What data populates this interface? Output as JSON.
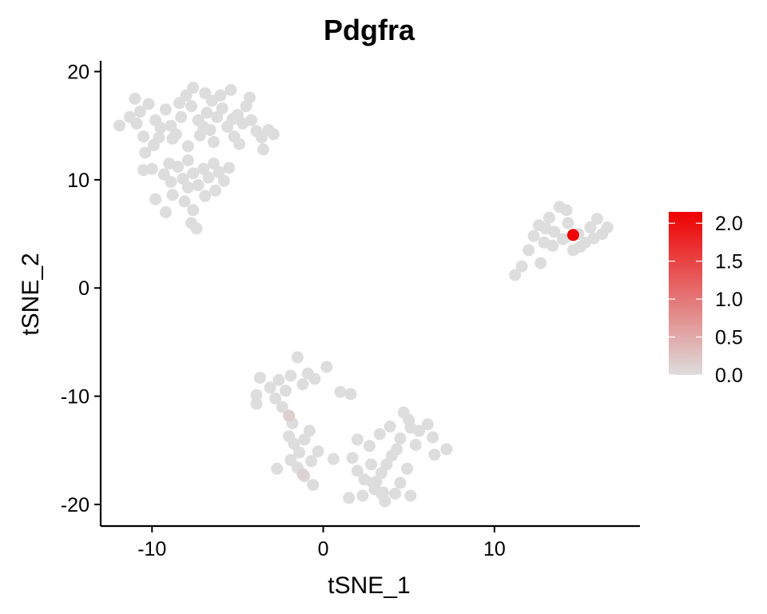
{
  "chart_data": {
    "type": "scatter",
    "title": "Pdgfra",
    "xlabel": "tSNE_1",
    "ylabel": "tSNE_2",
    "xlim": [
      -13.0,
      18.5
    ],
    "ylim": [
      -22,
      21
    ],
    "xticks": [
      -10,
      0,
      10
    ],
    "yticks": [
      -20,
      -10,
      0,
      10,
      20
    ],
    "xtick_labels": [
      "-10",
      "0",
      "10"
    ],
    "ytick_labels": [
      "-20",
      "-10",
      "0",
      "10",
      "20"
    ],
    "grid": false,
    "legend_position": "right",
    "color_scale": {
      "low": "#dddddd",
      "high": "#ee0000",
      "min": 0,
      "max": 2.15,
      "ticks": [
        0.0,
        0.5,
        1.0,
        1.5,
        2.0
      ],
      "tick_labels": [
        "0.0",
        "0.5",
        "1.0",
        "1.5",
        "2.0"
      ]
    },
    "points": [
      {
        "x": -11.9,
        "y": 15.0,
        "value": 0
      },
      {
        "x": -11.3,
        "y": 15.8,
        "value": 0
      },
      {
        "x": -11.0,
        "y": 17.5,
        "value": 0
      },
      {
        "x": -10.7,
        "y": 16.3,
        "value": 0
      },
      {
        "x": -10.5,
        "y": 14.0,
        "value": 0
      },
      {
        "x": -10.9,
        "y": 15.2,
        "value": 0
      },
      {
        "x": -10.2,
        "y": 17.0,
        "value": 0
      },
      {
        "x": -9.8,
        "y": 15.5,
        "value": 0
      },
      {
        "x": -9.5,
        "y": 14.8,
        "value": 0
      },
      {
        "x": -9.9,
        "y": 13.2,
        "value": 0
      },
      {
        "x": -10.4,
        "y": 12.5,
        "value": 0
      },
      {
        "x": -9.2,
        "y": 16.5,
        "value": 0
      },
      {
        "x": -8.9,
        "y": 15.0,
        "value": 0
      },
      {
        "x": -8.6,
        "y": 14.2,
        "value": 0
      },
      {
        "x": -8.3,
        "y": 15.8,
        "value": 0
      },
      {
        "x": -8.0,
        "y": 17.8,
        "value": 0
      },
      {
        "x": -7.7,
        "y": 16.8,
        "value": 0
      },
      {
        "x": -7.6,
        "y": 18.5,
        "value": 0
      },
      {
        "x": -7.3,
        "y": 15.5,
        "value": 0
      },
      {
        "x": -7.0,
        "y": 14.9,
        "value": 0
      },
      {
        "x": -6.8,
        "y": 16.2,
        "value": 0
      },
      {
        "x": -6.5,
        "y": 17.3,
        "value": 0
      },
      {
        "x": -6.2,
        "y": 15.8,
        "value": 0
      },
      {
        "x": -5.9,
        "y": 16.6,
        "value": 0
      },
      {
        "x": -5.6,
        "y": 14.9,
        "value": 0
      },
      {
        "x": -5.3,
        "y": 15.6,
        "value": 0
      },
      {
        "x": -5.0,
        "y": 16.0,
        "value": 0
      },
      {
        "x": -4.7,
        "y": 15.2,
        "value": 0
      },
      {
        "x": -4.5,
        "y": 16.8,
        "value": 0
      },
      {
        "x": -4.2,
        "y": 15.5,
        "value": 0
      },
      {
        "x": -3.9,
        "y": 14.5,
        "value": 0
      },
      {
        "x": -3.6,
        "y": 13.9,
        "value": 0
      },
      {
        "x": -3.2,
        "y": 14.6,
        "value": 0
      },
      {
        "x": -2.9,
        "y": 14.2,
        "value": 0
      },
      {
        "x": -5.4,
        "y": 18.3,
        "value": 0
      },
      {
        "x": -6.0,
        "y": 17.8,
        "value": 0
      },
      {
        "x": -6.9,
        "y": 18.0,
        "value": 0
      },
      {
        "x": -5.2,
        "y": 14.0,
        "value": 0
      },
      {
        "x": -4.9,
        "y": 13.3,
        "value": 0
      },
      {
        "x": -3.5,
        "y": 12.8,
        "value": 0
      },
      {
        "x": -8.8,
        "y": 13.8,
        "value": 0
      },
      {
        "x": -9.6,
        "y": 13.9,
        "value": 0
      },
      {
        "x": -7.9,
        "y": 13.1,
        "value": 0
      },
      {
        "x": -6.4,
        "y": 13.5,
        "value": 0
      },
      {
        "x": -7.2,
        "y": 14.1,
        "value": 0
      },
      {
        "x": -4.3,
        "y": 17.6,
        "value": 0
      },
      {
        "x": -6.6,
        "y": 14.6,
        "value": 0
      },
      {
        "x": -8.4,
        "y": 17.1,
        "value": 0
      },
      {
        "x": -10.0,
        "y": 11.0,
        "value": 0
      },
      {
        "x": -9.3,
        "y": 10.5,
        "value": 0
      },
      {
        "x": -8.9,
        "y": 9.8,
        "value": 0
      },
      {
        "x": -8.5,
        "y": 11.2,
        "value": 0
      },
      {
        "x": -8.2,
        "y": 10.1,
        "value": 0
      },
      {
        "x": -7.9,
        "y": 11.8,
        "value": 0
      },
      {
        "x": -7.6,
        "y": 10.6,
        "value": 0
      },
      {
        "x": -7.3,
        "y": 9.5,
        "value": 0
      },
      {
        "x": -7.0,
        "y": 11.0,
        "value": 0
      },
      {
        "x": -6.7,
        "y": 10.2,
        "value": 0
      },
      {
        "x": -6.4,
        "y": 11.5,
        "value": 0
      },
      {
        "x": -6.1,
        "y": 10.7,
        "value": 0
      },
      {
        "x": -5.8,
        "y": 9.9,
        "value": 0
      },
      {
        "x": -5.5,
        "y": 11.1,
        "value": 0
      },
      {
        "x": -8.8,
        "y": 8.6,
        "value": 0
      },
      {
        "x": -8.1,
        "y": 8.0,
        "value": 0
      },
      {
        "x": -7.6,
        "y": 7.2,
        "value": 0
      },
      {
        "x": -7.4,
        "y": 5.5,
        "value": 0
      },
      {
        "x": -9.8,
        "y": 8.2,
        "value": 0
      },
      {
        "x": -9.2,
        "y": 7.0,
        "value": 0
      },
      {
        "x": -7.7,
        "y": 6.0,
        "value": 0
      },
      {
        "x": -6.9,
        "y": 8.5,
        "value": 0
      },
      {
        "x": -6.3,
        "y": 9.0,
        "value": 0
      },
      {
        "x": -7.9,
        "y": 9.3,
        "value": 0
      },
      {
        "x": -10.5,
        "y": 10.9,
        "value": 0
      },
      {
        "x": -9.0,
        "y": 11.5,
        "value": 0
      },
      {
        "x": 11.2,
        "y": 1.2,
        "value": 0
      },
      {
        "x": 11.6,
        "y": 2.0,
        "value": 0
      },
      {
        "x": 12.0,
        "y": 3.5,
        "value": 0
      },
      {
        "x": 12.3,
        "y": 4.8,
        "value": 0
      },
      {
        "x": 12.6,
        "y": 5.8,
        "value": 0
      },
      {
        "x": 12.9,
        "y": 4.2,
        "value": 0
      },
      {
        "x": 13.2,
        "y": 6.5,
        "value": 0
      },
      {
        "x": 13.5,
        "y": 5.2,
        "value": 0
      },
      {
        "x": 13.8,
        "y": 7.5,
        "value": 0
      },
      {
        "x": 14.0,
        "y": 4.5,
        "value": 0
      },
      {
        "x": 14.3,
        "y": 6.0,
        "value": 0
      },
      {
        "x": 14.6,
        "y": 3.5,
        "value": 0
      },
      {
        "x": 14.9,
        "y": 5.0,
        "value": 0
      },
      {
        "x": 15.3,
        "y": 4.2,
        "value": 0
      },
      {
        "x": 15.6,
        "y": 5.6,
        "value": 0
      },
      {
        "x": 16.0,
        "y": 6.4,
        "value": 0
      },
      {
        "x": 16.3,
        "y": 5.0,
        "value": 0
      },
      {
        "x": 16.6,
        "y": 5.6,
        "value": 0
      },
      {
        "x": 15.0,
        "y": 3.8,
        "value": 0
      },
      {
        "x": 13.4,
        "y": 3.9,
        "value": 0
      },
      {
        "x": 12.7,
        "y": 2.3,
        "value": 0
      },
      {
        "x": 14.2,
        "y": 7.2,
        "value": 0
      },
      {
        "x": 13.0,
        "y": 5.5,
        "value": 0
      },
      {
        "x": 15.8,
        "y": 4.6,
        "value": 0
      },
      {
        "x": 14.6,
        "y": 4.9,
        "value": 2.1
      },
      {
        "x": -3.7,
        "y": -8.3,
        "value": 0
      },
      {
        "x": -3.1,
        "y": -9.2,
        "value": 0
      },
      {
        "x": -2.6,
        "y": -8.5,
        "value": 0
      },
      {
        "x": -2.2,
        "y": -9.5,
        "value": 0
      },
      {
        "x": -1.9,
        "y": -8.1,
        "value": 0
      },
      {
        "x": -1.5,
        "y": -6.4,
        "value": 0
      },
      {
        "x": -1.2,
        "y": -8.9,
        "value": 0
      },
      {
        "x": -0.9,
        "y": -7.9,
        "value": 0
      },
      {
        "x": -0.5,
        "y": -8.4,
        "value": 0
      },
      {
        "x": -3.9,
        "y": -9.9,
        "value": 0
      },
      {
        "x": -3.9,
        "y": -10.7,
        "value": 0
      },
      {
        "x": -2.8,
        "y": -10.2,
        "value": 0
      },
      {
        "x": -2.4,
        "y": -11.0,
        "value": 0
      },
      {
        "x": -1.8,
        "y": -12.5,
        "value": 0
      },
      {
        "x": -2.0,
        "y": -13.7,
        "value": 0
      },
      {
        "x": -1.7,
        "y": -14.4,
        "value": 0
      },
      {
        "x": -1.4,
        "y": -15.2,
        "value": 0
      },
      {
        "x": -1.1,
        "y": -14.0,
        "value": 0
      },
      {
        "x": -1.9,
        "y": -15.9,
        "value": 0
      },
      {
        "x": -1.5,
        "y": -16.6,
        "value": 0
      },
      {
        "x": -1.1,
        "y": -17.4,
        "value": 0
      },
      {
        "x": -0.7,
        "y": -16.0,
        "value": 0
      },
      {
        "x": -0.3,
        "y": -15.1,
        "value": 0
      },
      {
        "x": -2.7,
        "y": -16.7,
        "value": 0
      },
      {
        "x": -0.6,
        "y": -18.2,
        "value": 0
      },
      {
        "x": -0.8,
        "y": -13.2,
        "value": 0
      },
      {
        "x": 0.2,
        "y": -7.3,
        "value": 0
      },
      {
        "x": 1.0,
        "y": -9.6,
        "value": 0
      },
      {
        "x": 1.6,
        "y": -9.8,
        "value": 0
      },
      {
        "x": 0.6,
        "y": -15.8,
        "value": 0
      },
      {
        "x": 1.7,
        "y": -15.7,
        "value": 0
      },
      {
        "x": 2.0,
        "y": -16.9,
        "value": 0
      },
      {
        "x": 2.4,
        "y": -17.7,
        "value": 0
      },
      {
        "x": 2.8,
        "y": -16.3,
        "value": 0
      },
      {
        "x": 3.1,
        "y": -17.9,
        "value": 0
      },
      {
        "x": 3.4,
        "y": -17.1,
        "value": 0
      },
      {
        "x": 3.7,
        "y": -16.3,
        "value": 0
      },
      {
        "x": 4.0,
        "y": -15.5,
        "value": 0
      },
      {
        "x": 4.3,
        "y": -14.9,
        "value": 0
      },
      {
        "x": 3.0,
        "y": -18.6,
        "value": 0
      },
      {
        "x": 3.5,
        "y": -18.9,
        "value": 0
      },
      {
        "x": 4.2,
        "y": -19.0,
        "value": 0
      },
      {
        "x": 4.5,
        "y": -18.0,
        "value": 0
      },
      {
        "x": 5.1,
        "y": -19.2,
        "value": 0
      },
      {
        "x": 4.9,
        "y": -16.7,
        "value": 0
      },
      {
        "x": 2.3,
        "y": -19.2,
        "value": 0
      },
      {
        "x": 1.5,
        "y": -19.4,
        "value": 0
      },
      {
        "x": 3.6,
        "y": -19.7,
        "value": 0
      },
      {
        "x": 2.0,
        "y": -14.0,
        "value": 0
      },
      {
        "x": 2.7,
        "y": -14.6,
        "value": 0
      },
      {
        "x": 3.3,
        "y": -13.5,
        "value": 0
      },
      {
        "x": 3.9,
        "y": -12.8,
        "value": 0
      },
      {
        "x": 4.5,
        "y": -13.9,
        "value": 0
      },
      {
        "x": 5.0,
        "y": -12.2,
        "value": 0
      },
      {
        "x": 5.6,
        "y": -13.2,
        "value": 0
      },
      {
        "x": 6.1,
        "y": -12.6,
        "value": 0
      },
      {
        "x": 6.4,
        "y": -13.8,
        "value": 0
      },
      {
        "x": 5.4,
        "y": -14.5,
        "value": 0
      },
      {
        "x": 6.5,
        "y": -15.4,
        "value": 0
      },
      {
        "x": 7.2,
        "y": -14.9,
        "value": 0
      },
      {
        "x": 4.7,
        "y": -11.5,
        "value": 0
      },
      {
        "x": 5.1,
        "y": -12.9,
        "value": 0
      },
      {
        "x": 2.9,
        "y": -18.0,
        "value": 0
      },
      {
        "x": 3.4,
        "y": -19.0,
        "value": 0
      },
      {
        "x": -2.0,
        "y": -11.8,
        "value": 0.15
      },
      {
        "x": -1.2,
        "y": -17.2,
        "value": 0.12
      }
    ]
  }
}
